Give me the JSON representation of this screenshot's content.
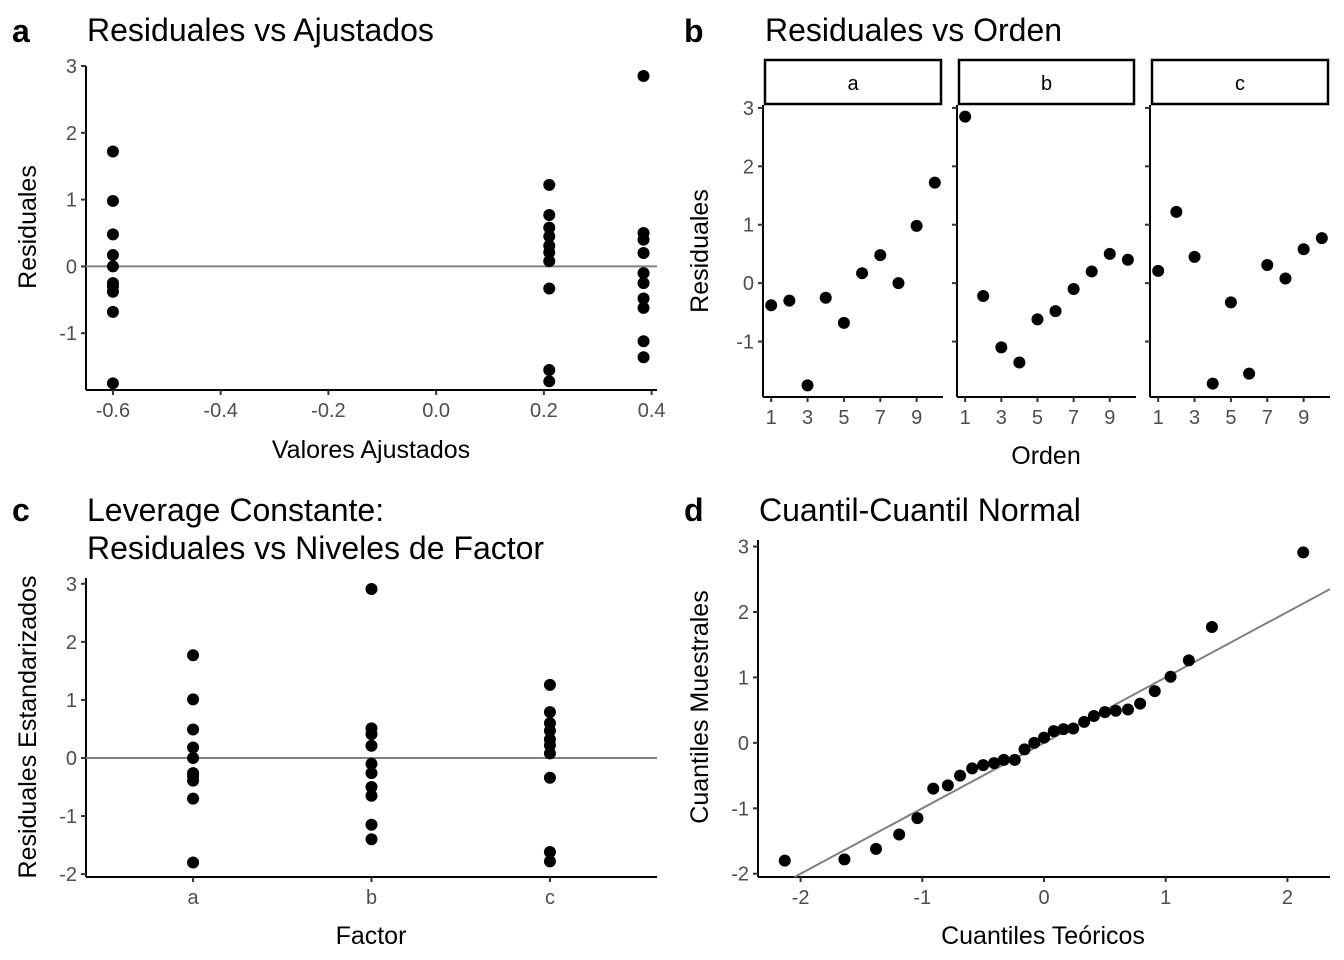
{
  "chart_data": [
    {
      "tag": "a",
      "type": "scatter",
      "title": "Residuales vs Ajustados",
      "xlabel": "Valores Ajustados",
      "ylabel": "Residuales",
      "xlim": [
        -0.65,
        0.41
      ],
      "ylim": [
        -1.85,
        3.0
      ],
      "xticks": [
        -0.6,
        -0.4,
        -0.2,
        0.0,
        0.2,
        0.4
      ],
      "xtick_labels": [
        "-0.6",
        "-0.4",
        "-0.2",
        "0.0",
        "0.2",
        "0.4"
      ],
      "yticks": [
        -1,
        0,
        1,
        2,
        3
      ],
      "ytick_labels": [
        "-1",
        "0",
        "1",
        "2",
        "3"
      ],
      "hline": 0,
      "points": [
        [
          -0.6,
          1.72
        ],
        [
          -0.6,
          0.98
        ],
        [
          -0.6,
          0.48
        ],
        [
          -0.6,
          0.17
        ],
        [
          -0.6,
          0.0
        ],
        [
          -0.6,
          -0.25
        ],
        [
          -0.6,
          -0.3
        ],
        [
          -0.6,
          -0.38
        ],
        [
          -0.6,
          -0.68
        ],
        [
          -0.6,
          -1.75
        ],
        [
          0.21,
          1.22
        ],
        [
          0.21,
          0.77
        ],
        [
          0.21,
          0.58
        ],
        [
          0.21,
          0.45
        ],
        [
          0.21,
          0.31
        ],
        [
          0.21,
          0.21
        ],
        [
          0.21,
          0.08
        ],
        [
          0.21,
          -0.33
        ],
        [
          0.21,
          -1.55
        ],
        [
          0.21,
          -1.72
        ],
        [
          0.385,
          2.85
        ],
        [
          0.385,
          0.5
        ],
        [
          0.385,
          0.4
        ],
        [
          0.385,
          0.2
        ],
        [
          0.385,
          -0.1
        ],
        [
          0.385,
          -0.25
        ],
        [
          0.385,
          -0.48
        ],
        [
          0.385,
          -0.62
        ],
        [
          0.385,
          -1.12
        ],
        [
          0.385,
          -1.36
        ]
      ]
    },
    {
      "tag": "b",
      "type": "scatter",
      "title": "Residuales vs Orden",
      "xlabel": "Orden",
      "ylabel": "Residuales",
      "xlim": [
        0.55,
        10.45
      ],
      "ylim": [
        -1.95,
        3.05
      ],
      "xticks": [
        1,
        3,
        5,
        7,
        9
      ],
      "xtick_labels": [
        "1",
        "3",
        "5",
        "7",
        "9"
      ],
      "yticks": [
        -1,
        0,
        1,
        2,
        3
      ],
      "ytick_labels": [
        "-1",
        "0",
        "1",
        "2",
        "3"
      ],
      "facets": [
        {
          "label": "a",
          "values": [
            -0.38,
            -0.3,
            -1.75,
            -0.25,
            -0.68,
            0.17,
            0.48,
            0.0,
            0.98,
            1.72
          ]
        },
        {
          "label": "b",
          "values": [
            2.85,
            -0.22,
            -1.1,
            -1.36,
            -0.62,
            -0.48,
            -0.1,
            0.2,
            0.5,
            0.4
          ]
        },
        {
          "label": "c",
          "values": [
            0.21,
            1.22,
            0.45,
            -1.72,
            -0.33,
            -1.55,
            0.31,
            0.08,
            0.58,
            0.77
          ]
        }
      ]
    },
    {
      "tag": "c",
      "type": "scatter",
      "title": [
        "Leverage Constante:",
        "Residuales vs Niveles de Factor"
      ],
      "xlabel": "Factor",
      "ylabel": "Residuales Estandarizados",
      "categories": [
        "a",
        "b",
        "c"
      ],
      "ylim": [
        -2.05,
        3.1
      ],
      "yticks": [
        -2,
        -1,
        0,
        1,
        2,
        3
      ],
      "ytick_labels": [
        "-2",
        "-1",
        "0",
        "1",
        "2",
        "3"
      ],
      "hline": 0,
      "groups": [
        {
          "category": "a",
          "values": [
            1.77,
            1.01,
            0.49,
            0.18,
            0.0,
            -0.26,
            -0.31,
            -0.39,
            -0.7,
            -1.8
          ]
        },
        {
          "category": "b",
          "values": [
            2.91,
            0.51,
            0.41,
            0.21,
            -0.1,
            -0.26,
            -0.5,
            -0.65,
            -1.15,
            -1.4
          ]
        },
        {
          "category": "c",
          "values": [
            1.26,
            0.79,
            0.6,
            0.47,
            0.32,
            0.22,
            0.08,
            -0.34,
            -1.62,
            -1.78
          ]
        }
      ]
    },
    {
      "tag": "d",
      "type": "scatter",
      "title": "Cuantil-Cuantil Normal",
      "xlabel": "Cuantiles Teóricos",
      "ylabel": "Cuantiles Muestrales",
      "xlim": [
        -2.35,
        2.35
      ],
      "ylim": [
        -2.05,
        3.1
      ],
      "xticks": [
        -2,
        -1,
        0,
        1,
        2
      ],
      "xtick_labels": [
        "-2",
        "-1",
        "0",
        "1",
        "2"
      ],
      "yticks": [
        -2,
        -1,
        0,
        1,
        2,
        3
      ],
      "ytick_labels": [
        "-2",
        "-1",
        "0",
        "1",
        "2",
        "3"
      ],
      "reference_line": {
        "intercept": 0.0,
        "slope": 1.0
      },
      "points": [
        [
          -2.13,
          -1.8
        ],
        [
          -1.64,
          -1.78
        ],
        [
          -1.38,
          -1.62
        ],
        [
          -1.19,
          -1.4
        ],
        [
          -1.04,
          -1.15
        ],
        [
          -0.91,
          -0.7
        ],
        [
          -0.79,
          -0.65
        ],
        [
          -0.69,
          -0.5
        ],
        [
          -0.59,
          -0.39
        ],
        [
          -0.5,
          -0.34
        ],
        [
          -0.41,
          -0.31
        ],
        [
          -0.33,
          -0.26
        ],
        [
          -0.24,
          -0.26
        ],
        [
          -0.16,
          -0.1
        ],
        [
          -0.08,
          0.0
        ],
        [
          0.0,
          0.08
        ],
        [
          0.08,
          0.18
        ],
        [
          0.16,
          0.21
        ],
        [
          0.24,
          0.22
        ],
        [
          0.33,
          0.32
        ],
        [
          0.41,
          0.41
        ],
        [
          0.5,
          0.47
        ],
        [
          0.59,
          0.49
        ],
        [
          0.69,
          0.51
        ],
        [
          0.79,
          0.6
        ],
        [
          0.91,
          0.79
        ],
        [
          1.04,
          1.01
        ],
        [
          1.19,
          1.26
        ],
        [
          1.38,
          1.77
        ],
        [
          2.13,
          2.91
        ]
      ]
    }
  ]
}
